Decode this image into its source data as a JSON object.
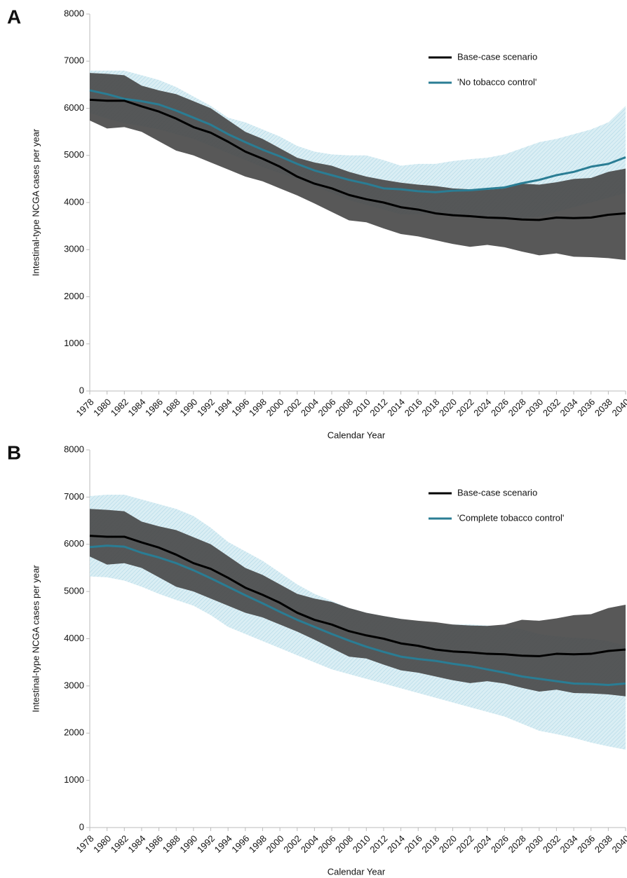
{
  "chart_data": [
    {
      "type": "line",
      "panel_label": "A",
      "ylabel": "Intestinal-type NCGA cases per year",
      "xlabel": "Calendar Year",
      "x": [
        1978,
        1980,
        1982,
        1984,
        1986,
        1988,
        1990,
        1992,
        1994,
        1996,
        1998,
        2000,
        2002,
        2004,
        2006,
        2008,
        2010,
        2012,
        2014,
        2016,
        2018,
        2020,
        2022,
        2024,
        2026,
        2028,
        2030,
        2032,
        2034,
        2036,
        2038,
        2040
      ],
      "xlim": [
        1978,
        2040
      ],
      "xticks": [
        1978,
        1980,
        1982,
        1984,
        1986,
        1988,
        1990,
        1992,
        1994,
        1996,
        1998,
        2000,
        2002,
        2004,
        2006,
        2008,
        2010,
        2012,
        2014,
        2016,
        2018,
        2020,
        2022,
        2024,
        2026,
        2028,
        2030,
        2032,
        2034,
        2036,
        2038,
        2040
      ],
      "ylim": [
        0,
        8000
      ],
      "yticks": [
        0,
        1000,
        2000,
        3000,
        4000,
        5000,
        6000,
        7000,
        8000
      ],
      "legend": "upper right",
      "series": [
        {
          "name": "Base-case scenario",
          "color": "#000000",
          "band_color": "#4a4a4a",
          "values": [
            6180,
            6160,
            6160,
            6040,
            5930,
            5780,
            5600,
            5480,
            5290,
            5080,
            4930,
            4760,
            4550,
            4400,
            4300,
            4160,
            4070,
            4000,
            3900,
            3850,
            3770,
            3730,
            3710,
            3680,
            3670,
            3640,
            3630,
            3680,
            3670,
            3680,
            3740,
            3770
          ],
          "upper": [
            6750,
            6730,
            6700,
            6480,
            6380,
            6300,
            6150,
            6000,
            5750,
            5500,
            5350,
            5150,
            4950,
            4850,
            4780,
            4650,
            4550,
            4480,
            4420,
            4380,
            4350,
            4300,
            4280,
            4270,
            4300,
            4400,
            4380,
            4430,
            4500,
            4520,
            4650,
            4720
          ],
          "lower": [
            5740,
            5570,
            5600,
            5500,
            5300,
            5100,
            5000,
            4850,
            4700,
            4550,
            4450,
            4300,
            4150,
            3980,
            3800,
            3620,
            3580,
            3450,
            3330,
            3280,
            3200,
            3120,
            3060,
            3100,
            3050,
            2960,
            2880,
            2920,
            2850,
            2840,
            2820,
            2780
          ]
        },
        {
          "name": "'No tobacco control'",
          "color": "#2a7d94",
          "band_color": "#bfe0ec",
          "values": [
            6380,
            6300,
            6200,
            6150,
            6080,
            5950,
            5800,
            5650,
            5450,
            5280,
            5120,
            4980,
            4820,
            4680,
            4580,
            4480,
            4400,
            4300,
            4280,
            4240,
            4220,
            4250,
            4260,
            4290,
            4320,
            4410,
            4480,
            4580,
            4650,
            4760,
            4820,
            4960
          ],
          "upper": [
            6800,
            6800,
            6800,
            6700,
            6600,
            6450,
            6250,
            6050,
            5800,
            5700,
            5550,
            5400,
            5200,
            5080,
            5020,
            5000,
            5000,
            4900,
            4780,
            4820,
            4820,
            4880,
            4920,
            4950,
            5020,
            5150,
            5280,
            5350,
            5450,
            5550,
            5700,
            6050
          ],
          "lower": [
            5900,
            5780,
            5680,
            5620,
            5550,
            5450,
            5350,
            5200,
            5050,
            4900,
            4750,
            4620,
            4500,
            4350,
            4200,
            4050,
            3950,
            3850,
            3750,
            3750,
            3750,
            3720,
            3680,
            3650,
            3620,
            3660,
            3700,
            3800,
            3900,
            4000,
            4100,
            4200
          ]
        }
      ]
    },
    {
      "type": "line",
      "panel_label": "B",
      "ylabel": "Intestinal-type NCGA cases per year",
      "xlabel": "Calendar Year",
      "x": [
        1978,
        1980,
        1982,
        1984,
        1986,
        1988,
        1990,
        1992,
        1994,
        1996,
        1998,
        2000,
        2002,
        2004,
        2006,
        2008,
        2010,
        2012,
        2014,
        2016,
        2018,
        2020,
        2022,
        2024,
        2026,
        2028,
        2030,
        2032,
        2034,
        2036,
        2038,
        2040
      ],
      "xlim": [
        1978,
        2040
      ],
      "xticks": [
        1978,
        1980,
        1982,
        1984,
        1986,
        1988,
        1990,
        1992,
        1994,
        1996,
        1998,
        2000,
        2002,
        2004,
        2006,
        2008,
        2010,
        2012,
        2014,
        2016,
        2018,
        2020,
        2022,
        2024,
        2026,
        2028,
        2030,
        2032,
        2034,
        2036,
        2038,
        2040
      ],
      "ylim": [
        0,
        8000
      ],
      "yticks": [
        0,
        1000,
        2000,
        3000,
        4000,
        5000,
        6000,
        7000,
        8000
      ],
      "legend": "upper right",
      "series": [
        {
          "name": "Base-case scenario",
          "color": "#000000",
          "band_color": "#4a4a4a",
          "values": [
            6180,
            6160,
            6160,
            6040,
            5930,
            5780,
            5600,
            5480,
            5290,
            5080,
            4930,
            4760,
            4550,
            4400,
            4300,
            4160,
            4070,
            4000,
            3900,
            3850,
            3770,
            3730,
            3710,
            3680,
            3670,
            3640,
            3630,
            3680,
            3670,
            3680,
            3740,
            3770
          ],
          "upper": [
            6750,
            6730,
            6700,
            6480,
            6380,
            6300,
            6150,
            6000,
            5750,
            5500,
            5350,
            5150,
            4950,
            4850,
            4780,
            4650,
            4550,
            4480,
            4420,
            4380,
            4350,
            4300,
            4280,
            4270,
            4300,
            4400,
            4380,
            4430,
            4500,
            4520,
            4650,
            4720
          ],
          "lower": [
            5740,
            5570,
            5600,
            5500,
            5300,
            5100,
            5000,
            4850,
            4700,
            4550,
            4450,
            4300,
            4150,
            3980,
            3800,
            3620,
            3580,
            3450,
            3330,
            3280,
            3200,
            3120,
            3060,
            3100,
            3050,
            2960,
            2880,
            2920,
            2850,
            2840,
            2820,
            2780
          ]
        },
        {
          "name": "'Complete tobacco control'",
          "color": "#2a7d94",
          "band_color": "#bfe0ec",
          "values": [
            5940,
            5970,
            5950,
            5820,
            5720,
            5600,
            5450,
            5280,
            5100,
            4920,
            4750,
            4570,
            4400,
            4250,
            4100,
            3960,
            3830,
            3720,
            3620,
            3570,
            3530,
            3470,
            3420,
            3350,
            3280,
            3200,
            3150,
            3100,
            3050,
            3040,
            3020,
            3050
          ],
          "upper": [
            7020,
            7050,
            7050,
            6950,
            6850,
            6750,
            6600,
            6350,
            6050,
            5850,
            5650,
            5400,
            5150,
            4950,
            4800,
            4650,
            4550,
            4480,
            4420,
            4360,
            4300,
            4300,
            4300,
            4280,
            4250,
            4200,
            4100,
            4050,
            4020,
            4000,
            3950,
            3850
          ],
          "lower": [
            5320,
            5300,
            5230,
            5100,
            4950,
            4820,
            4700,
            4500,
            4250,
            4100,
            3950,
            3800,
            3650,
            3500,
            3350,
            3250,
            3150,
            3050,
            2950,
            2850,
            2750,
            2650,
            2550,
            2450,
            2350,
            2200,
            2050,
            1980,
            1900,
            1800,
            1720,
            1650
          ]
        }
      ]
    }
  ]
}
